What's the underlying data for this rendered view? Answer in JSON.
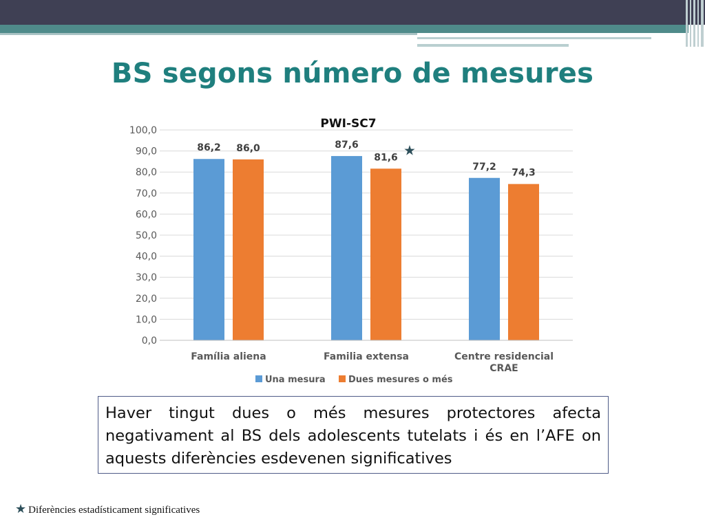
{
  "slide": {
    "title": "BS segons número de mesures",
    "note": "Haver tingut dues o més mesures protectores afecta negativament al BS dels adolescents tutelats i és en l’AFE on aquests diferències esdevenen significatives",
    "footnote_star": "★",
    "footnote": "Diferències estadísticament significatives"
  },
  "colors": {
    "header_dark": "#3f4054",
    "header_teal": "#4f8b8a",
    "title": "#1f7f7e",
    "series_1": "#5b9bd5",
    "series_2": "#ed7d31"
  },
  "chart_data": {
    "type": "bar",
    "title": "PWI-SC7",
    "categories": [
      "Família aliena",
      "Familia extensa",
      "Centre residencial"
    ],
    "category_sublabels": [
      "",
      "",
      "CRAE"
    ],
    "series": [
      {
        "name": "Una mesura",
        "values": [
          86.2,
          87.6,
          77.2
        ],
        "labels": [
          "86,2",
          "87,6",
          "77,2"
        ]
      },
      {
        "name": "Dues mesures o més",
        "values": [
          86.0,
          81.6,
          74.3
        ],
        "labels": [
          "86,0",
          "81,6",
          "74,3"
        ]
      }
    ],
    "ylim": [
      0,
      100
    ],
    "yticks": [
      0,
      10,
      20,
      30,
      40,
      50,
      60,
      70,
      80,
      90,
      100
    ],
    "ytick_labels": [
      "0,0",
      "10,0",
      "20,0",
      "30,0",
      "40,0",
      "50,0",
      "60,0",
      "70,0",
      "80,0",
      "90,0",
      "100,0"
    ],
    "grid": true,
    "legend": "bottom",
    "significance_marker": {
      "symbol": "★",
      "category_index": 1
    }
  }
}
